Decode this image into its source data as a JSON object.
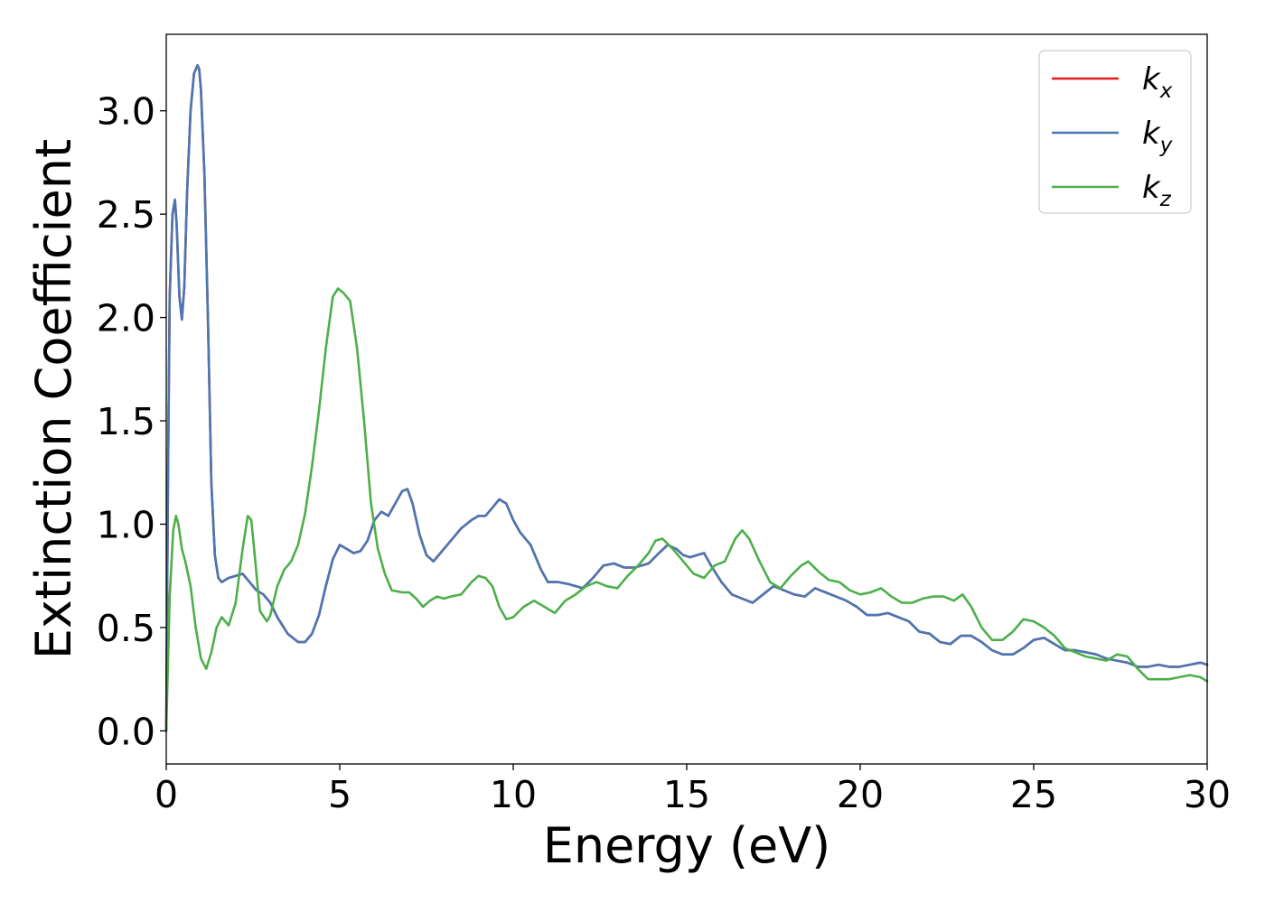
{
  "chart_data": {
    "type": "line",
    "xlabel": "Energy (eV)",
    "ylabel": "Extinction Coefficient",
    "xlim": [
      0,
      30
    ],
    "ylim": [
      -0.16,
      3.37
    ],
    "xticks": [
      0,
      5,
      10,
      15,
      20,
      25,
      30
    ],
    "xtick_labels": [
      "0",
      "5",
      "10",
      "15",
      "20",
      "25",
      "30"
    ],
    "yticks": [
      0.0,
      0.5,
      1.0,
      1.5,
      2.0,
      2.5,
      3.0
    ],
    "ytick_labels": [
      "0.0",
      "0.5",
      "1.0",
      "1.5",
      "2.0",
      "2.5",
      "3.0"
    ],
    "grid": false,
    "legend_position": "top-right",
    "series": [
      {
        "name": "k_x",
        "label_main": "k",
        "label_sub": "x",
        "color": "#e41a1c",
        "x": [
          0,
          0.05,
          0.1,
          0.18,
          0.25,
          0.3,
          0.38,
          0.45,
          0.52,
          0.6,
          0.7,
          0.8,
          0.9,
          0.95,
          1.0,
          1.1,
          1.2,
          1.3,
          1.4,
          1.5,
          1.6,
          1.7,
          1.8,
          2.0,
          2.2,
          2.4,
          2.6,
          2.8,
          3.0,
          3.2,
          3.5,
          3.8,
          4.0,
          4.2,
          4.4,
          4.6,
          4.8,
          5.0,
          5.2,
          5.4,
          5.6,
          5.8,
          6.0,
          6.2,
          6.4,
          6.6,
          6.8,
          6.95,
          7.1,
          7.3,
          7.5,
          7.7,
          7.9,
          8.2,
          8.5,
          8.8,
          9.0,
          9.2,
          9.4,
          9.6,
          9.8,
          10.0,
          10.2,
          10.5,
          10.8,
          11.0,
          11.3,
          11.6,
          12.0,
          12.3,
          12.6,
          12.9,
          13.2,
          13.5,
          13.9,
          14.2,
          14.45,
          14.7,
          14.9,
          15.1,
          15.3,
          15.5,
          15.7,
          16.0,
          16.3,
          16.6,
          16.9,
          17.2,
          17.5,
          17.8,
          18.1,
          18.4,
          18.7,
          19.0,
          19.3,
          19.6,
          19.9,
          20.2,
          20.5,
          20.8,
          21.1,
          21.4,
          21.7,
          22.0,
          22.3,
          22.6,
          22.9,
          23.2,
          23.5,
          23.8,
          24.1,
          24.4,
          24.7,
          25.0,
          25.3,
          25.6,
          25.9,
          26.2,
          26.5,
          26.8,
          27.1,
          27.4,
          27.7,
          28.0,
          28.3,
          28.6,
          28.9,
          29.2,
          29.5,
          29.8,
          30.0
        ],
        "y": [
          0,
          1.2,
          2.1,
          2.5,
          2.57,
          2.45,
          2.1,
          1.99,
          2.15,
          2.6,
          3.0,
          3.18,
          3.22,
          3.2,
          3.1,
          2.7,
          2.0,
          1.2,
          0.85,
          0.74,
          0.72,
          0.73,
          0.74,
          0.75,
          0.76,
          0.72,
          0.68,
          0.66,
          0.62,
          0.55,
          0.47,
          0.43,
          0.43,
          0.47,
          0.56,
          0.7,
          0.83,
          0.9,
          0.88,
          0.86,
          0.87,
          0.92,
          1.02,
          1.06,
          1.04,
          1.1,
          1.16,
          1.17,
          1.1,
          0.95,
          0.85,
          0.82,
          0.86,
          0.92,
          0.98,
          1.02,
          1.04,
          1.04,
          1.08,
          1.12,
          1.1,
          1.02,
          0.96,
          0.9,
          0.78,
          0.72,
          0.72,
          0.71,
          0.69,
          0.74,
          0.8,
          0.81,
          0.79,
          0.79,
          0.81,
          0.86,
          0.9,
          0.88,
          0.85,
          0.84,
          0.85,
          0.86,
          0.8,
          0.72,
          0.66,
          0.64,
          0.62,
          0.66,
          0.7,
          0.68,
          0.66,
          0.65,
          0.69,
          0.67,
          0.65,
          0.63,
          0.6,
          0.56,
          0.56,
          0.57,
          0.55,
          0.53,
          0.48,
          0.47,
          0.43,
          0.42,
          0.46,
          0.46,
          0.43,
          0.39,
          0.37,
          0.37,
          0.4,
          0.44,
          0.45,
          0.42,
          0.39,
          0.39,
          0.38,
          0.37,
          0.35,
          0.34,
          0.33,
          0.31,
          0.31,
          0.32,
          0.31,
          0.31,
          0.32,
          0.33,
          0.32
        ],
        "note_dummy": ""
      },
      {
        "name": "k_y",
        "label_main": "k",
        "label_sub": "y",
        "color": "#4a77b4",
        "x": [
          0,
          0.05,
          0.1,
          0.18,
          0.25,
          0.3,
          0.38,
          0.45,
          0.52,
          0.6,
          0.7,
          0.8,
          0.9,
          0.95,
          1.0,
          1.1,
          1.2,
          1.3,
          1.4,
          1.5,
          1.6,
          1.7,
          1.8,
          2.0,
          2.2,
          2.4,
          2.6,
          2.8,
          3.0,
          3.2,
          3.5,
          3.8,
          4.0,
          4.2,
          4.4,
          4.6,
          4.8,
          5.0,
          5.2,
          5.4,
          5.6,
          5.8,
          6.0,
          6.2,
          6.4,
          6.6,
          6.8,
          6.95,
          7.1,
          7.3,
          7.5,
          7.7,
          7.9,
          8.2,
          8.5,
          8.8,
          9.0,
          9.2,
          9.4,
          9.6,
          9.8,
          10.0,
          10.2,
          10.5,
          10.8,
          11.0,
          11.3,
          11.6,
          12.0,
          12.3,
          12.6,
          12.9,
          13.2,
          13.5,
          13.9,
          14.2,
          14.45,
          14.7,
          14.9,
          15.1,
          15.3,
          15.5,
          15.7,
          16.0,
          16.3,
          16.6,
          16.9,
          17.2,
          17.5,
          17.8,
          18.1,
          18.4,
          18.7,
          19.0,
          19.3,
          19.6,
          19.9,
          20.2,
          20.5,
          20.8,
          21.1,
          21.4,
          21.7,
          22.0,
          22.3,
          22.6,
          22.9,
          23.2,
          23.5,
          23.8,
          24.1,
          24.4,
          24.7,
          25.0,
          25.3,
          25.6,
          25.9,
          26.2,
          26.5,
          26.8,
          27.1,
          27.4,
          27.7,
          28.0,
          28.3,
          28.6,
          28.9,
          29.2,
          29.5,
          29.8,
          30.0
        ],
        "y": [
          0,
          1.2,
          2.1,
          2.5,
          2.57,
          2.45,
          2.1,
          1.99,
          2.15,
          2.6,
          3.0,
          3.18,
          3.22,
          3.2,
          3.1,
          2.7,
          2.0,
          1.2,
          0.85,
          0.74,
          0.72,
          0.73,
          0.74,
          0.75,
          0.76,
          0.72,
          0.68,
          0.66,
          0.62,
          0.55,
          0.47,
          0.43,
          0.43,
          0.47,
          0.56,
          0.7,
          0.83,
          0.9,
          0.88,
          0.86,
          0.87,
          0.92,
          1.02,
          1.06,
          1.04,
          1.1,
          1.16,
          1.17,
          1.1,
          0.95,
          0.85,
          0.82,
          0.86,
          0.92,
          0.98,
          1.02,
          1.04,
          1.04,
          1.08,
          1.12,
          1.1,
          1.02,
          0.96,
          0.9,
          0.78,
          0.72,
          0.72,
          0.71,
          0.69,
          0.74,
          0.8,
          0.81,
          0.79,
          0.79,
          0.81,
          0.86,
          0.9,
          0.88,
          0.85,
          0.84,
          0.85,
          0.86,
          0.8,
          0.72,
          0.66,
          0.64,
          0.62,
          0.66,
          0.7,
          0.68,
          0.66,
          0.65,
          0.69,
          0.67,
          0.65,
          0.63,
          0.6,
          0.56,
          0.56,
          0.57,
          0.55,
          0.53,
          0.48,
          0.47,
          0.43,
          0.42,
          0.46,
          0.46,
          0.43,
          0.39,
          0.37,
          0.37,
          0.4,
          0.44,
          0.45,
          0.42,
          0.39,
          0.39,
          0.38,
          0.37,
          0.35,
          0.34,
          0.33,
          0.31,
          0.31,
          0.32,
          0.31,
          0.31,
          0.32,
          0.33,
          0.32
        ]
      },
      {
        "name": "k_z",
        "label_main": "k",
        "label_sub": "z",
        "color": "#4daf4a",
        "x": [
          0,
          0.1,
          0.2,
          0.28,
          0.35,
          0.45,
          0.55,
          0.7,
          0.85,
          1.0,
          1.15,
          1.3,
          1.45,
          1.6,
          1.8,
          2.0,
          2.2,
          2.35,
          2.45,
          2.55,
          2.7,
          2.9,
          3.0,
          3.2,
          3.4,
          3.6,
          3.8,
          4.0,
          4.2,
          4.4,
          4.6,
          4.8,
          4.95,
          5.1,
          5.3,
          5.5,
          5.7,
          5.9,
          6.1,
          6.3,
          6.5,
          6.8,
          7.0,
          7.2,
          7.4,
          7.6,
          7.8,
          8.0,
          8.2,
          8.5,
          8.8,
          9.0,
          9.2,
          9.4,
          9.6,
          9.8,
          10.0,
          10.3,
          10.6,
          10.9,
          11.2,
          11.5,
          11.8,
          12.1,
          12.4,
          12.7,
          13.0,
          13.3,
          13.6,
          13.9,
          14.1,
          14.3,
          14.6,
          14.9,
          15.2,
          15.5,
          15.8,
          16.1,
          16.4,
          16.6,
          16.8,
          17.1,
          17.4,
          17.7,
          18.0,
          18.3,
          18.5,
          18.8,
          19.1,
          19.4,
          19.7,
          20.0,
          20.3,
          20.6,
          20.9,
          21.2,
          21.5,
          21.8,
          22.1,
          22.4,
          22.7,
          22.95,
          23.2,
          23.5,
          23.8,
          24.1,
          24.4,
          24.7,
          25.0,
          25.3,
          25.6,
          25.9,
          26.2,
          26.5,
          26.8,
          27.1,
          27.4,
          27.7,
          28.0,
          28.3,
          28.6,
          28.9,
          29.2,
          29.5,
          29.8,
          30.0
        ],
        "y": [
          0,
          0.65,
          0.97,
          1.04,
          1.0,
          0.88,
          0.82,
          0.7,
          0.5,
          0.35,
          0.3,
          0.38,
          0.5,
          0.55,
          0.51,
          0.62,
          0.88,
          1.04,
          1.02,
          0.85,
          0.58,
          0.53,
          0.56,
          0.7,
          0.78,
          0.82,
          0.9,
          1.05,
          1.28,
          1.55,
          1.85,
          2.1,
          2.14,
          2.12,
          2.08,
          1.85,
          1.5,
          1.1,
          0.88,
          0.76,
          0.68,
          0.67,
          0.67,
          0.64,
          0.6,
          0.63,
          0.65,
          0.64,
          0.65,
          0.66,
          0.72,
          0.75,
          0.74,
          0.7,
          0.6,
          0.54,
          0.55,
          0.6,
          0.63,
          0.6,
          0.57,
          0.63,
          0.66,
          0.7,
          0.72,
          0.7,
          0.69,
          0.75,
          0.8,
          0.86,
          0.92,
          0.93,
          0.88,
          0.82,
          0.76,
          0.74,
          0.8,
          0.82,
          0.93,
          0.97,
          0.93,
          0.82,
          0.72,
          0.69,
          0.75,
          0.8,
          0.82,
          0.77,
          0.73,
          0.72,
          0.68,
          0.66,
          0.67,
          0.69,
          0.65,
          0.62,
          0.62,
          0.64,
          0.65,
          0.65,
          0.63,
          0.66,
          0.6,
          0.5,
          0.44,
          0.44,
          0.48,
          0.54,
          0.53,
          0.5,
          0.46,
          0.4,
          0.38,
          0.36,
          0.35,
          0.34,
          0.37,
          0.36,
          0.3,
          0.25,
          0.25,
          0.25,
          0.26,
          0.27,
          0.26,
          0.24
        ]
      }
    ]
  }
}
